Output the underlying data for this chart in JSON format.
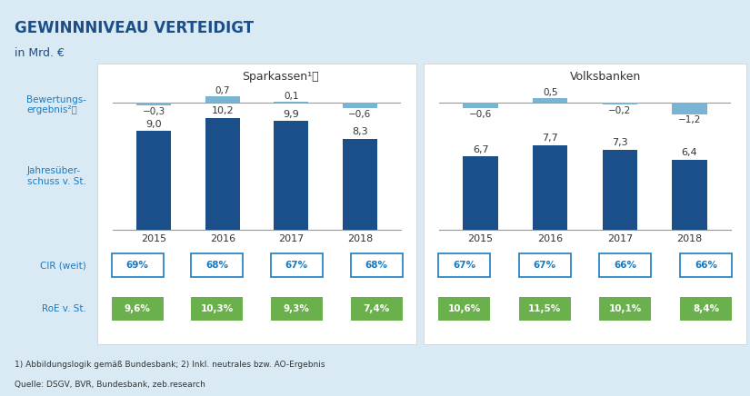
{
  "title": "GEWINNNIVEAU VERTEIDIGT",
  "subtitle": "in Mrd. €",
  "bg_color": "#daeaf4",
  "panel_color": "#ffffff",
  "left_panel_title": "Sparkassen¹⦳",
  "right_panel_title": "Volksbanken",
  "years": [
    "2015",
    "2016",
    "2017",
    "2018"
  ],
  "sparkassen_bar_values": [
    9.0,
    10.2,
    9.9,
    8.3
  ],
  "sparkassen_bewertung_values": [
    -0.3,
    0.7,
    0.1,
    -0.6
  ],
  "volksbanken_bar_values": [
    6.7,
    7.7,
    7.3,
    6.4
  ],
  "volksbanken_bewertung_values": [
    -0.6,
    0.5,
    -0.2,
    -1.2
  ],
  "sparkassen_cir": [
    "69%",
    "68%",
    "67%",
    "68%"
  ],
  "volksbanken_cir": [
    "67%",
    "67%",
    "66%",
    "66%"
  ],
  "sparkassen_roe": [
    "9,6%",
    "10,3%",
    "9,3%",
    "7,4%"
  ],
  "volksbanken_roe": [
    "10,6%",
    "11,5%",
    "10,1%",
    "8,4%"
  ],
  "bar_color": "#1a4f8a",
  "bewertung_pos_color": "#7ab4d4",
  "bewertung_neg_color": "#7ab4d4",
  "cir_border_color": "#1a7abf",
  "cir_text_color": "#1a7abf",
  "roe_bg_color": "#6ab04c",
  "roe_text_color": "#ffffff",
  "label_color": "#1a7abf",
  "footnote": "1) Abbildungslogik gemäß Bundesbank; 2) Inkl. neutrales bzw. AO-Ergebnis",
  "source": "Quelle: DSGV, BVR, Bundesbank, zeb.research"
}
